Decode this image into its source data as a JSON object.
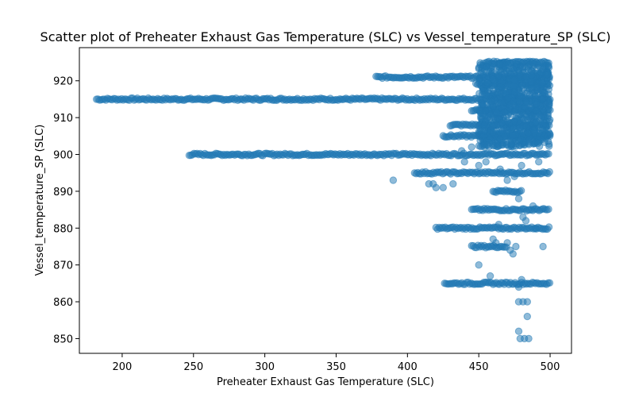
{
  "chart_data": {
    "type": "scatter",
    "title": "Scatter plot of Preheater Exhaust Gas Temperature (SLC) vs Vessel_temperature_SP (SLC)",
    "xlabel": "Preheater Exhaust Gas Temperature (SLC)",
    "ylabel": "Vessel_temperature_SP (SLC)",
    "xlim": [
      170,
      515
    ],
    "ylim": [
      846,
      929
    ],
    "xticks": [
      200,
      250,
      300,
      350,
      400,
      450,
      500
    ],
    "yticks": [
      850,
      860,
      870,
      880,
      890,
      900,
      910,
      920
    ],
    "color": "#1f77b4",
    "grid": false,
    "bands": [
      {
        "x": [
          182,
          500
        ],
        "y": 915
      },
      {
        "x": [
          247,
          500
        ],
        "y": 900
      },
      {
        "x": [
          378,
          500
        ],
        "y": 921
      },
      {
        "x": [
          455,
          500
        ],
        "y": 925
      },
      {
        "x": [
          430,
          500
        ],
        "y": 908
      },
      {
        "x": [
          425,
          500
        ],
        "y": 905
      },
      {
        "x": [
          445,
          500
        ],
        "y": 912
      },
      {
        "x": [
          448,
          500
        ],
        "y": 919
      },
      {
        "x": [
          405,
          500
        ],
        "y": 895
      },
      {
        "x": [
          445,
          500
        ],
        "y": 885
      },
      {
        "x": [
          420,
          500
        ],
        "y": 880
      },
      {
        "x": [
          426,
          500
        ],
        "y": 865
      },
      {
        "x": [
          460,
          480
        ],
        "y": 890
      },
      {
        "x": [
          445,
          470
        ],
        "y": 875
      }
    ],
    "cluster": {
      "x": [
        450,
        500
      ],
      "y": [
        902,
        925
      ]
    },
    "points": [
      [
        390,
        893
      ],
      [
        415,
        892
      ],
      [
        420,
        891
      ],
      [
        425,
        891
      ],
      [
        432,
        892
      ],
      [
        418,
        892
      ],
      [
        440,
        898
      ],
      [
        445,
        902
      ],
      [
        438,
        901
      ],
      [
        450,
        897
      ],
      [
        455,
        898
      ],
      [
        465,
        896
      ],
      [
        470,
        893
      ],
      [
        475,
        894
      ],
      [
        480,
        897
      ],
      [
        485,
        903
      ],
      [
        492,
        898
      ],
      [
        478,
        888
      ],
      [
        481,
        883
      ],
      [
        483,
        882
      ],
      [
        488,
        886
      ],
      [
        464,
        881
      ],
      [
        470,
        876
      ],
      [
        472,
        874
      ],
      [
        474,
        873
      ],
      [
        476,
        875
      ],
      [
        462,
        876
      ],
      [
        460,
        877
      ],
      [
        490,
        880
      ],
      [
        495,
        875
      ],
      [
        450,
        870
      ],
      [
        458,
        867
      ],
      [
        478,
        864
      ],
      [
        480,
        866
      ],
      [
        478,
        860
      ],
      [
        481,
        860
      ],
      [
        484,
        860
      ],
      [
        484,
        856
      ],
      [
        478,
        852
      ],
      [
        479,
        850
      ],
      [
        482,
        850
      ],
      [
        485,
        850
      ]
    ]
  }
}
